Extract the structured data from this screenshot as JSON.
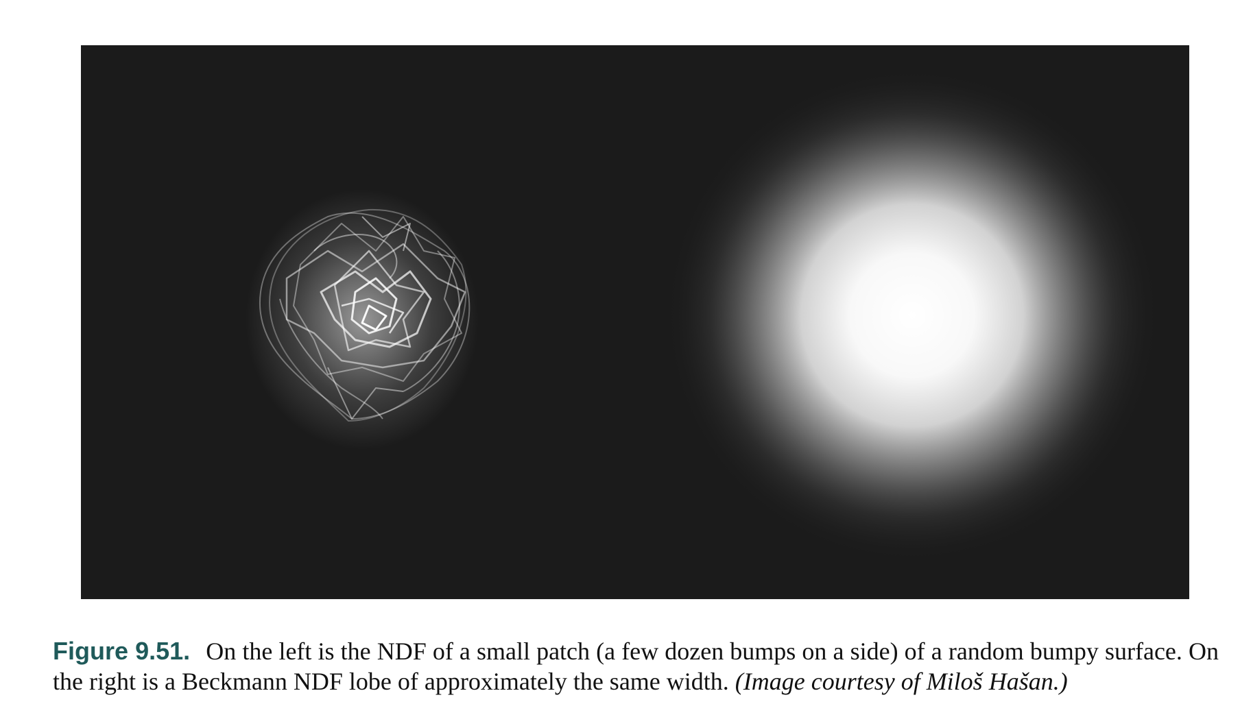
{
  "figure": {
    "label": "Figure 9.51.",
    "caption_text": "On the left is the NDF of a small patch (a few dozen bumps on a side) of a random bumpy surface. On the right is a Beckmann NDF lobe of approximately the same width.",
    "caption_credit": "(Image courtesy of Miloš Hašan.)"
  },
  "colors": {
    "background": "#1b1b1b",
    "label": "#1f5a5a",
    "text": "#111111"
  }
}
